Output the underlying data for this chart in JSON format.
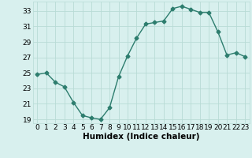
{
  "x": [
    0,
    1,
    2,
    3,
    4,
    5,
    6,
    7,
    8,
    9,
    10,
    11,
    12,
    13,
    14,
    15,
    16,
    17,
    18,
    19,
    20,
    21,
    22,
    23
  ],
  "y": [
    24.8,
    25.0,
    23.8,
    23.2,
    21.2,
    19.5,
    19.2,
    19.0,
    20.5,
    24.5,
    27.2,
    29.5,
    31.3,
    31.5,
    31.7,
    33.3,
    33.6,
    33.2,
    32.8,
    32.8,
    30.3,
    27.3,
    27.6,
    27.1
  ],
  "xlabel": "Humidex (Indice chaleur)",
  "ylim": [
    18.5,
    34.2
  ],
  "yticks": [
    19,
    21,
    23,
    25,
    27,
    29,
    31,
    33
  ],
  "xticks": [
    0,
    1,
    2,
    3,
    4,
    5,
    6,
    7,
    8,
    9,
    10,
    11,
    12,
    13,
    14,
    15,
    16,
    17,
    18,
    19,
    20,
    21,
    22,
    23
  ],
  "line_color": "#2d7d6e",
  "marker": "D",
  "marker_size": 2.5,
  "bg_color": "#d8f0ee",
  "grid_color": "#b8dbd6",
  "tick_label_fontsize": 6.5,
  "xlabel_fontsize": 7.5
}
